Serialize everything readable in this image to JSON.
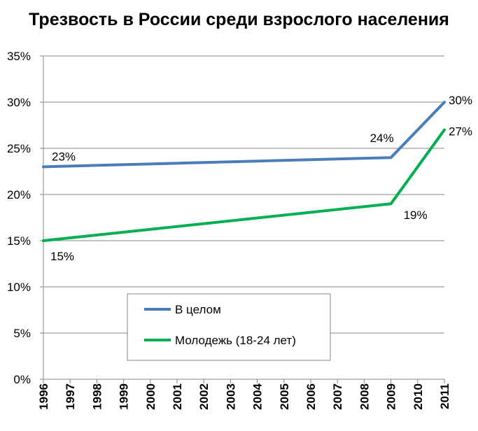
{
  "chart_data": {
    "type": "line",
    "title": "Трезвость в России среди взрослого населения",
    "x": [
      "1996",
      "1997",
      "1998",
      "1999",
      "2000",
      "2001",
      "2002",
      "2003",
      "2004",
      "2005",
      "2006",
      "2007",
      "2008",
      "2009",
      "2010",
      "2011"
    ],
    "ylim": [
      0,
      35
    ],
    "yticks": [
      "0%",
      "5%",
      "10%",
      "15%",
      "20%",
      "25%",
      "30%",
      "35%"
    ],
    "grid": true,
    "legend_placement": "lower-center",
    "series": [
      {
        "name": "В целом",
        "color": "#4a7ebb",
        "points": [
          [
            1996,
            23
          ],
          [
            2009,
            24
          ],
          [
            2011,
            30
          ]
        ],
        "labels": [
          "23%",
          "24%",
          "30%"
        ]
      },
      {
        "name": "Молодежь (18-24 лет)",
        "color": "#00b050",
        "points": [
          [
            1996,
            15
          ],
          [
            2009,
            19
          ],
          [
            2011,
            27
          ]
        ],
        "labels": [
          "15%",
          "19%",
          "27%"
        ]
      }
    ]
  }
}
